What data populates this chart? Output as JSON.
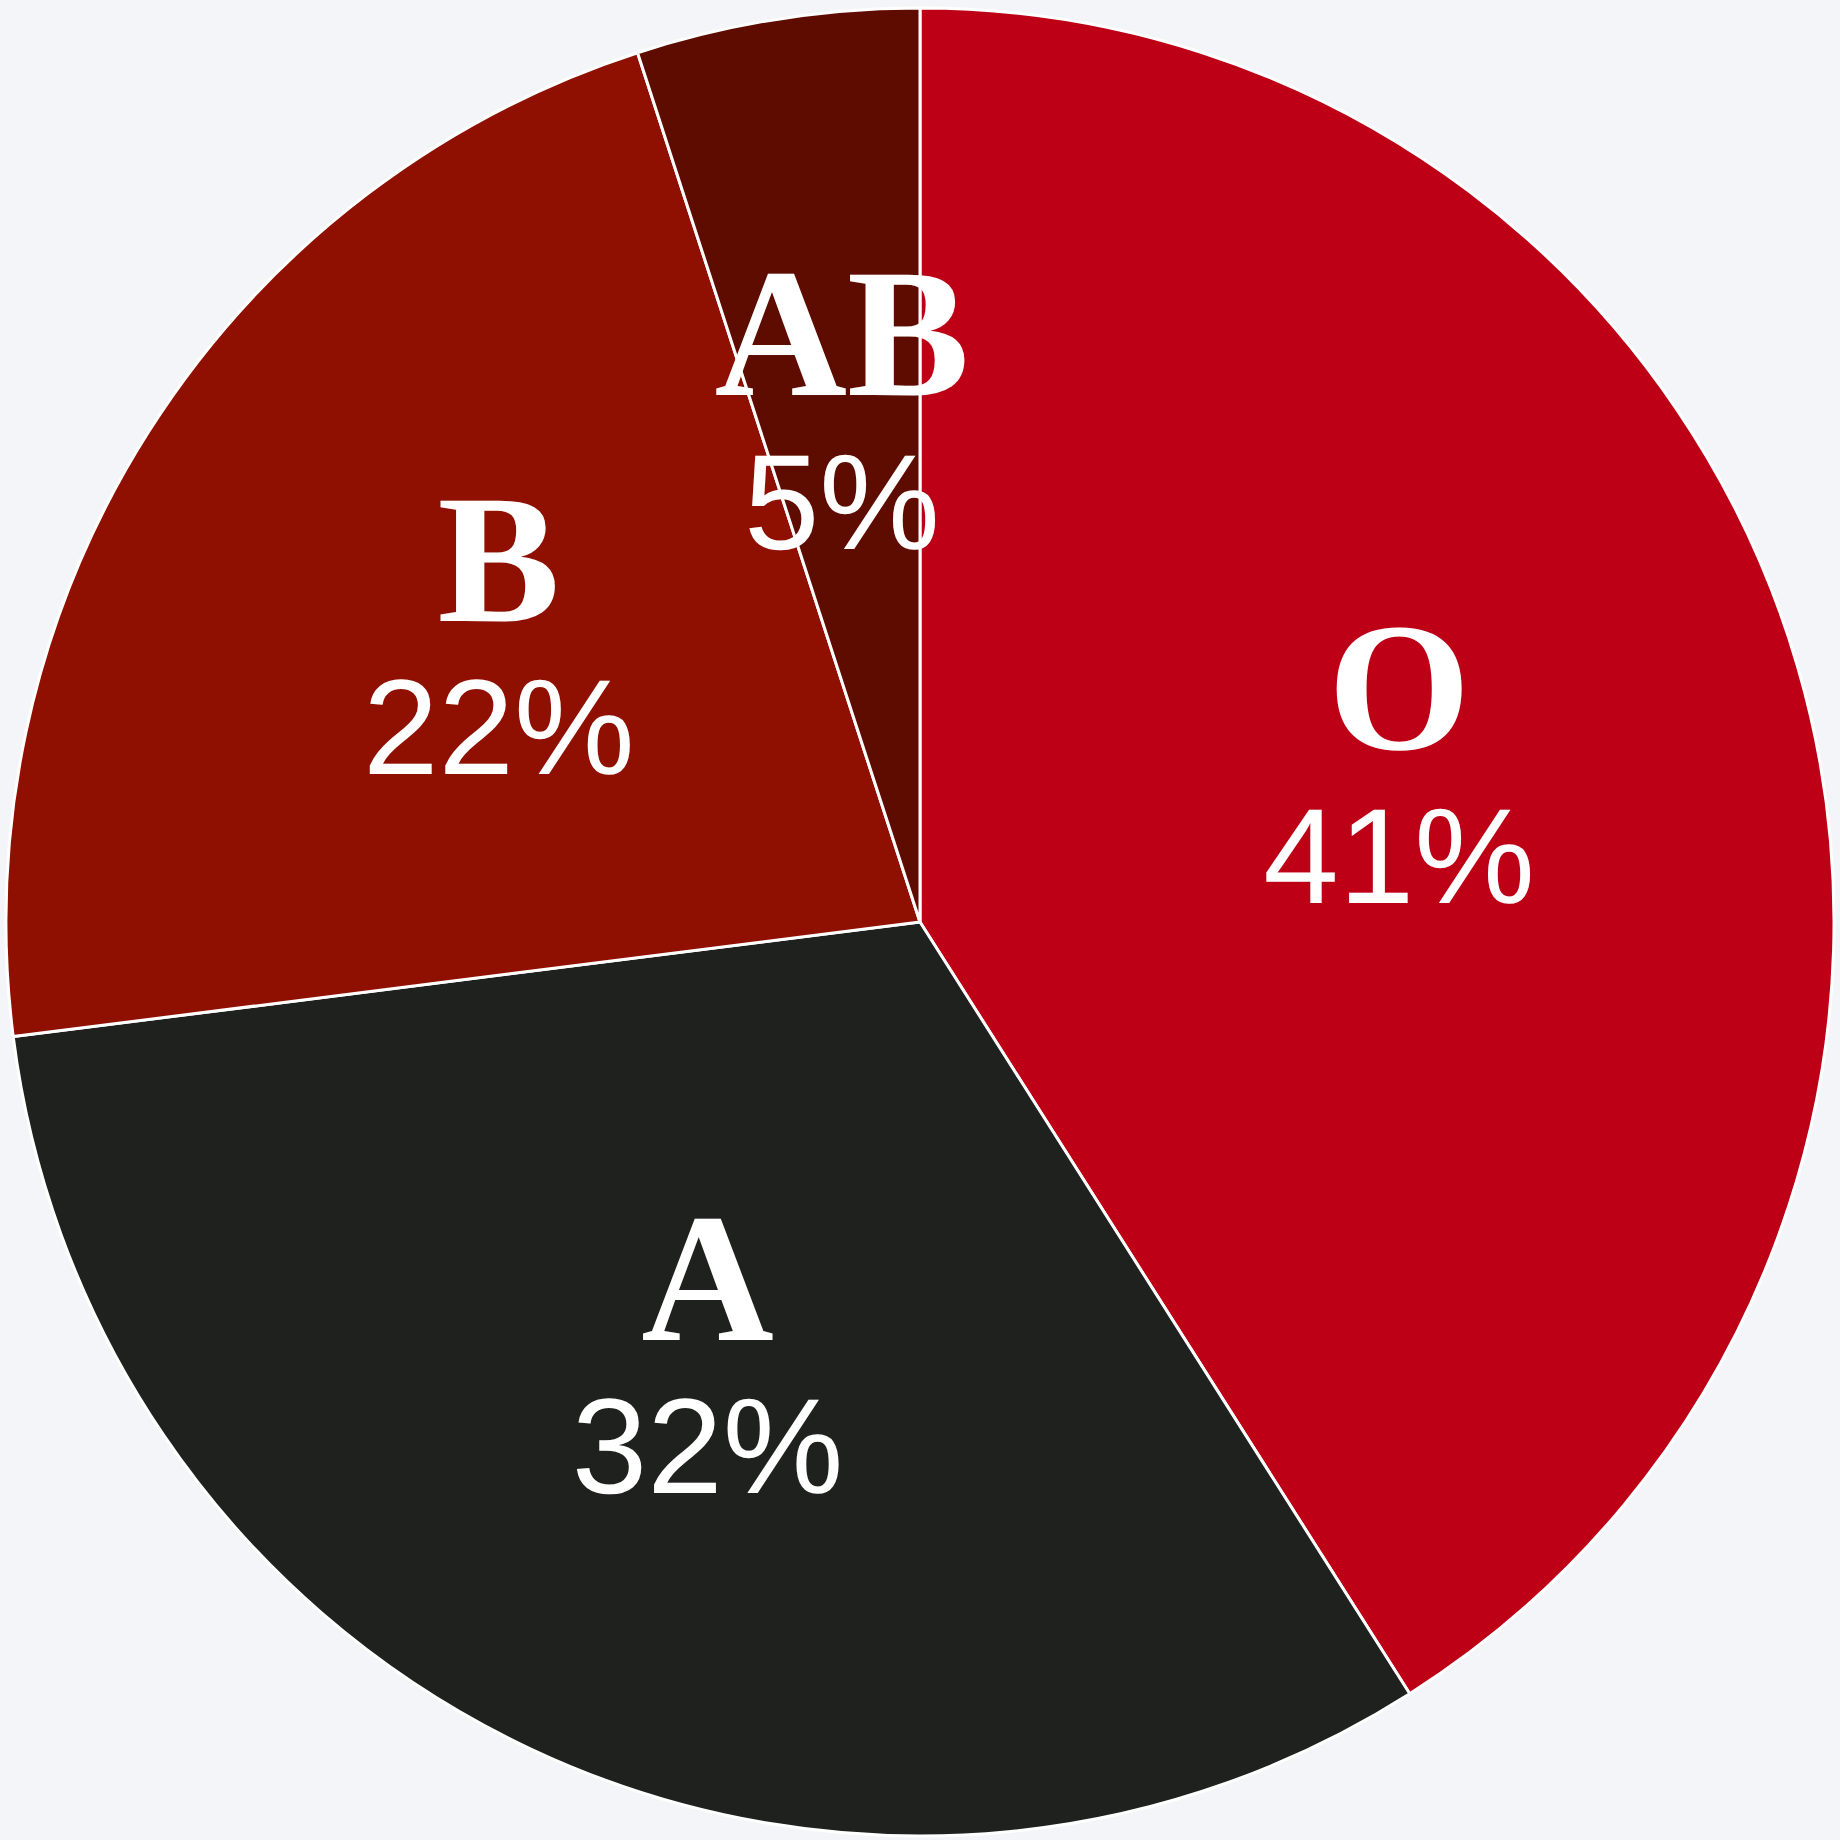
{
  "chart_data": {
    "type": "pie",
    "categories": [
      "O",
      "A",
      "B",
      "AB"
    ],
    "values": [
      41,
      32,
      22,
      5
    ],
    "value_labels": [
      "41%",
      "32%",
      "22%",
      "5%"
    ],
    "colors": [
      "#be0016",
      "#1f211f",
      "#8f1000",
      "#5e0c00"
    ],
    "legend": false
  }
}
